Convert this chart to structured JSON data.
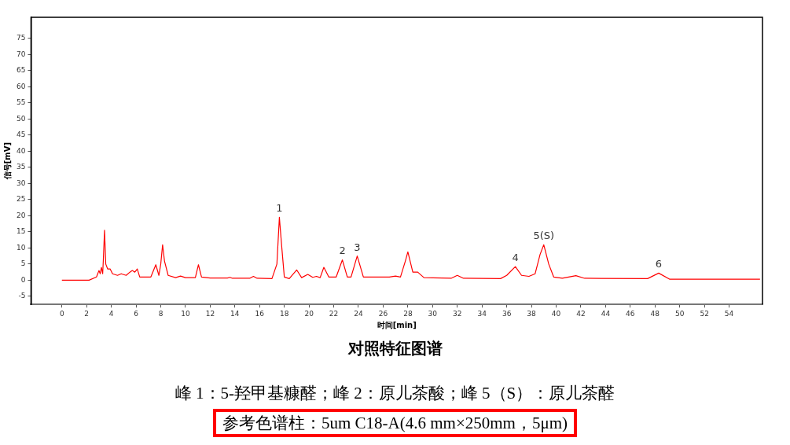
{
  "chart_data": {
    "type": "line",
    "title": "对照特征图谱",
    "xlabel": "时间[min]",
    "ylabel": "信号[mV]",
    "xlim": [
      -2.5,
      56.7
    ],
    "ylim": [
      -7.5,
      81.5
    ],
    "xticks": [
      0,
      2,
      4,
      6,
      8,
      10,
      12,
      14,
      16,
      18,
      20,
      22,
      24,
      26,
      28,
      30,
      32,
      34,
      36,
      38,
      40,
      42,
      44,
      46,
      48,
      50,
      52,
      54
    ],
    "yticks": [
      -5,
      0,
      5,
      10,
      15,
      20,
      25,
      30,
      35,
      40,
      45,
      50,
      55,
      60,
      65,
      70,
      75
    ],
    "grid": false,
    "legend": false,
    "marker": "none",
    "line_style": "solid",
    "series": [
      {
        "color": "#ff0000",
        "x": [
          0,
          2.2,
          2.8,
          3.0,
          3.1,
          3.2,
          3.3,
          3.35,
          3.45,
          3.55,
          3.7,
          3.9,
          4.1,
          4.5,
          4.8,
          5.2,
          5.5,
          5.7,
          5.9,
          6.1,
          6.3,
          7.2,
          7.6,
          7.85,
          8.0,
          8.15,
          8.3,
          8.6,
          9.2,
          9.6,
          10.0,
          10.8,
          11.05,
          11.3,
          12,
          13.4,
          13.6,
          13.8,
          15.2,
          15.5,
          15.8,
          17.0,
          17.4,
          17.6,
          17.8,
          18.0,
          18.4,
          19.0,
          19.4,
          19.9,
          20.3,
          20.6,
          20.9,
          21.2,
          21.6,
          22.2,
          22.7,
          23.1,
          23.4,
          23.9,
          24.4,
          26.5,
          27.0,
          27.4,
          27.8,
          28.0,
          28.4,
          28.8,
          29.3,
          31.5,
          32.0,
          32.5,
          35.5,
          36.0,
          36.7,
          37.2,
          37.8,
          38.3,
          38.7,
          39.0,
          39.4,
          39.8,
          40.5,
          41.6,
          42.3,
          47.4,
          48.3,
          49.2,
          55.5,
          56.5
        ],
        "values": [
          0,
          0,
          1,
          3,
          2,
          4,
          2,
          6,
          15.5,
          5,
          3.5,
          3.5,
          2,
          1.5,
          2,
          1.5,
          2.5,
          3,
          2.5,
          3.5,
          1,
          1,
          4.8,
          1.5,
          5,
          11,
          6,
          1.5,
          0.8,
          1.3,
          0.8,
          0.8,
          4.8,
          1,
          0.7,
          0.7,
          0.9,
          0.6,
          0.6,
          1.2,
          0.6,
          0.5,
          5,
          19.5,
          10,
          1,
          0.5,
          3.2,
          0.8,
          1.8,
          0.9,
          1.2,
          0.8,
          4,
          1,
          1,
          6.3,
          1,
          1,
          7.5,
          1,
          1,
          1.3,
          1,
          6,
          8.8,
          2.5,
          2.5,
          0.8,
          0.6,
          1.5,
          0.6,
          0.5,
          1.5,
          4.2,
          1.5,
          1.2,
          2,
          8,
          11,
          5,
          1,
          0.6,
          1.4,
          0.6,
          0.5,
          2.2,
          0.3,
          0.3,
          0.3
        ]
      }
    ],
    "annotations": [
      {
        "text": "1",
        "x": 17.6,
        "y": 19.5
      },
      {
        "text": "2",
        "x": 22.7,
        "y": 6.3
      },
      {
        "text": "3",
        "x": 23.9,
        "y": 7.5
      },
      {
        "text": "4",
        "x": 36.7,
        "y": 4.2
      },
      {
        "text": "5(S)",
        "x": 39.0,
        "y": 11
      },
      {
        "text": "6",
        "x": 48.3,
        "y": 2.2
      },
      "峰 1：5-羟甲基糠醛；峰 2：原儿茶酸；峰 5（S）：原儿茶醛",
      "参考色谱柱：5um C18-A(4.6 mm×250mm，5μm)"
    ]
  }
}
